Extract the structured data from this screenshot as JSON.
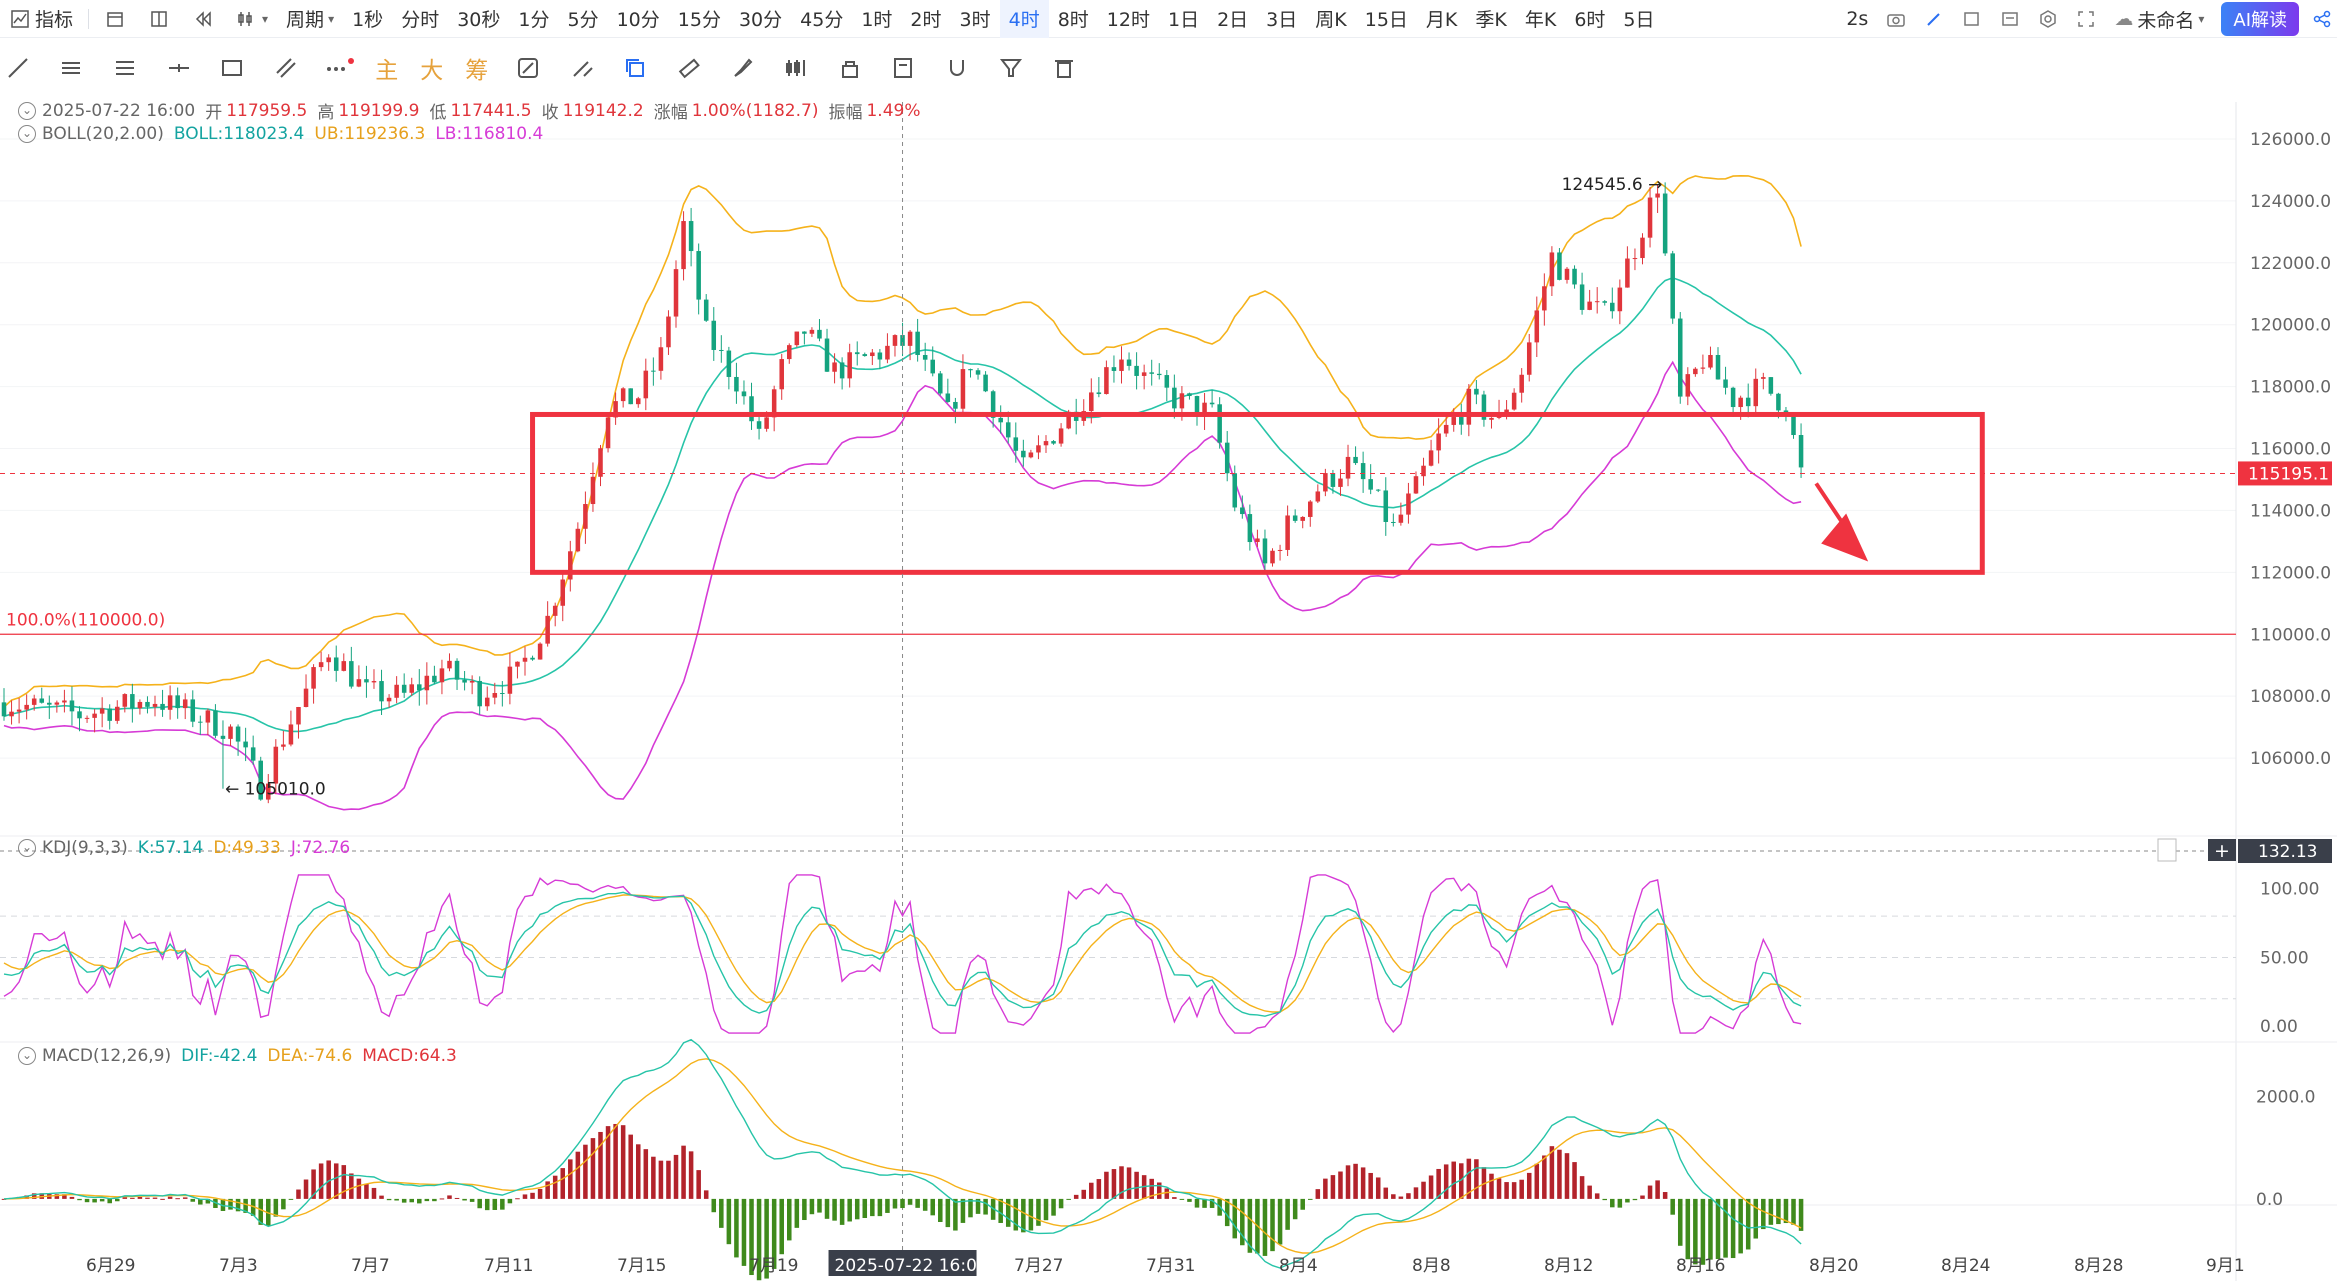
{
  "topbar": {
    "indicator_label": "指标",
    "period_label": "周期",
    "timeframes": [
      "1秒",
      "分时",
      "30秒",
      "1分",
      "5分",
      "10分",
      "15分",
      "30分",
      "45分",
      "1时",
      "2时",
      "3时",
      "4时",
      "8时",
      "12时",
      "1日",
      "2日",
      "3日",
      "周K",
      "15日",
      "月K",
      "季K",
      "年K",
      "6时",
      "5日"
    ],
    "active_timeframe": "4时",
    "refresh": "2s",
    "layout_name": "未命名",
    "ai_button": "AI解读"
  },
  "drawing_tools": {
    "main_label": "主",
    "big_label": "大",
    "chip_label": "筹"
  },
  "ohlc_legend": {
    "date": "2025-07-22 16:00",
    "open_label": "开",
    "open": "117959.5",
    "high_label": "高",
    "high": "119199.9",
    "low_label": "低",
    "low": "117441.5",
    "close_label": "收",
    "close": "119142.2",
    "change_label": "涨幅",
    "change": "1.00%(1182.7)",
    "amp_label": "振幅",
    "amp": "1.49%"
  },
  "boll_legend": {
    "name": "BOLL(20,2.00)",
    "mid": "BOLL:118023.4",
    "ub": "UB:119236.3",
    "lb": "LB:116810.4"
  },
  "kdj_legend": {
    "name": "KDJ(9,3,3)",
    "k": "K:57.14",
    "d": "D:49.33",
    "j": "J:72.76"
  },
  "macd_legend": {
    "name": "MACD(12,26,9)",
    "dif": "DIF:-42.4",
    "dea": "DEA:-74.6",
    "macd": "MACD:64.3"
  },
  "annotations": {
    "fib_line": "100.0%(110000.0)",
    "high_marker": "124545.6",
    "low_marker": "105010.0",
    "current_price": "115195.1",
    "crosshair_value": "132.13",
    "crosshair_date": "2025-07-22 16:00"
  },
  "colors": {
    "up": "#e0353b",
    "down": "#14a37f",
    "boll_mid": "#27c4a8",
    "boll_ub": "#f5b21b",
    "boll_lb": "#d63bd6",
    "box": "#ef3340",
    "accent": "#2a6ff2"
  },
  "chart_data": {
    "type": "candlestick",
    "timeframe": "4h",
    "price_axis": [
      "126000.0",
      "124000.0",
      "122000.0",
      "120000.0",
      "118000.0",
      "116000.0",
      "114000.0",
      "112000.0",
      "110000.0",
      "108000.0",
      "106000.0"
    ],
    "kdj_axis": [
      "100.00",
      "50.00",
      "0.00"
    ],
    "macd_axis": [
      "2000.0",
      "0.0"
    ],
    "date_axis": [
      "6月29",
      "7月3",
      "7月7",
      "7月11",
      "7月15",
      "7月19",
      "7月27",
      "7月31",
      "8月4",
      "8月8",
      "8月12",
      "8月16",
      "8月20",
      "8月24",
      "8月28",
      "9月1"
    ],
    "price_path": [
      [
        0,
        107800
      ],
      [
        10,
        107400
      ],
      [
        20,
        107900
      ],
      [
        30,
        106900
      ],
      [
        34,
        105100
      ],
      [
        38,
        107200
      ],
      [
        43,
        109500
      ],
      [
        48,
        108100
      ],
      [
        53,
        108000
      ],
      [
        58,
        108900
      ],
      [
        63,
        108100
      ],
      [
        68,
        108700
      ],
      [
        72,
        110500
      ],
      [
        76,
        113500
      ],
      [
        80,
        117300
      ],
      [
        84,
        117700
      ],
      [
        87,
        119000
      ],
      [
        90,
        123200
      ],
      [
        93,
        119700
      ],
      [
        97,
        118200
      ],
      [
        100,
        116300
      ],
      [
        103,
        118600
      ],
      [
        106,
        119800
      ],
      [
        110,
        118500
      ],
      [
        115,
        119000
      ],
      [
        120,
        119500
      ],
      [
        125,
        117100
      ],
      [
        128,
        118800
      ],
      [
        131,
        117400
      ],
      [
        135,
        115300
      ],
      [
        139,
        116500
      ],
      [
        144,
        117900
      ],
      [
        148,
        119100
      ],
      [
        151,
        118300
      ],
      [
        155,
        117600
      ],
      [
        160,
        117100
      ],
      [
        163,
        114200
      ],
      [
        167,
        112200
      ],
      [
        170,
        113500
      ],
      [
        174,
        114700
      ],
      [
        178,
        115500
      ],
      [
        181,
        114600
      ],
      [
        184,
        113400
      ],
      [
        187,
        114700
      ],
      [
        190,
        116300
      ],
      [
        194,
        117500
      ],
      [
        198,
        116900
      ],
      [
        201,
        118500
      ],
      [
        205,
        122200
      ],
      [
        209,
        120800
      ],
      [
        212,
        120300
      ],
      [
        216,
        122500
      ],
      [
        219,
        124546
      ],
      [
        222,
        117500
      ],
      [
        225,
        118900
      ],
      [
        229,
        117600
      ],
      [
        233,
        118000
      ],
      [
        236,
        117400
      ],
      [
        238,
        115195
      ]
    ],
    "candles": 239,
    "price_range": [
      104000,
      127000
    ],
    "kdj_range": [
      -10,
      115
    ],
    "macd_range": [
      -1000,
      2600
    ],
    "box_top": 117100,
    "box_bottom": 112000,
    "box_start": 70,
    "box_end": 262,
    "fib_level": 110000,
    "current_price": 115195.1,
    "high_marker_index": 219,
    "low_marker_index": 29,
    "crosshair_index": 119,
    "slots_total": 296
  }
}
